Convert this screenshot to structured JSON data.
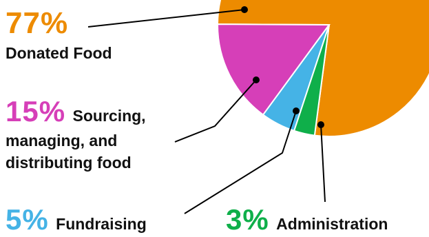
{
  "chart_data": {
    "type": "pie",
    "title": "",
    "slices": [
      {
        "label": "Donated Food",
        "value": 77,
        "percent_label": "77%",
        "color": "#ED8B00"
      },
      {
        "label": "Sourcing, managing, and distributing food",
        "value": 15,
        "percent_label": "15%",
        "color": "#D63FB8"
      },
      {
        "label": "Fundraising",
        "value": 5,
        "percent_label": "5%",
        "color": "#45B3E6"
      },
      {
        "label": "Administration",
        "value": 3,
        "percent_label": "3%",
        "color": "#0FAF4A"
      }
    ],
    "text": {
      "donated_pct": "77%",
      "donated_label": "Donated Food",
      "sourcing_pct": "15%",
      "sourcing_line1": "Sourcing,",
      "sourcing_line2": "managing, and",
      "sourcing_line3": "distributing food",
      "fundraising_pct": "5%",
      "fundraising_label": "Fundraising",
      "admin_pct": "3%",
      "admin_label": "Administration"
    }
  }
}
